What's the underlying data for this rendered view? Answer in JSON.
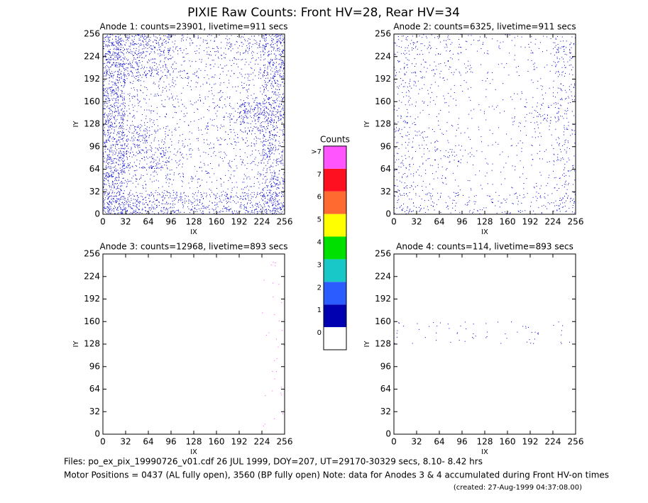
{
  "chart_data": [
    {
      "type": "heatmap-dots",
      "title": "Anode 1: counts=23901, livetime=911 secs",
      "xlabel": "IX",
      "ylabel": "IY",
      "xlim": [
        0,
        256
      ],
      "ylim": [
        0,
        256
      ],
      "xticks": [
        0,
        32,
        64,
        96,
        128,
        160,
        192,
        224,
        256
      ],
      "yticks": [
        0,
        32,
        64,
        96,
        128,
        160,
        192,
        224,
        256
      ],
      "color": "#0000cc",
      "density": [
        [
          40,
          30,
          25,
          10,
          10,
          10,
          15,
          35
        ],
        [
          40,
          25,
          20,
          10,
          8,
          8,
          10,
          30
        ],
        [
          35,
          10,
          8,
          6,
          6,
          6,
          8,
          25
        ],
        [
          35,
          8,
          6,
          6,
          6,
          10,
          35,
          35
        ],
        [
          35,
          25,
          10,
          6,
          6,
          10,
          15,
          25
        ],
        [
          35,
          20,
          25,
          8,
          6,
          6,
          8,
          25
        ],
        [
          35,
          10,
          8,
          6,
          6,
          6,
          8,
          25
        ],
        [
          45,
          30,
          25,
          20,
          20,
          20,
          25,
          40
        ]
      ]
    },
    {
      "type": "heatmap-dots",
      "title": "Anode 2: counts=6325, livetime=911 secs",
      "xlabel": "IX",
      "ylabel": "IY",
      "xlim": [
        0,
        256
      ],
      "ylim": [
        0,
        256
      ],
      "xticks": [
        0,
        32,
        64,
        96,
        128,
        160,
        192,
        224,
        256
      ],
      "yticks": [
        0,
        32,
        64,
        96,
        128,
        160,
        192,
        224,
        256
      ],
      "color": "#0000cc",
      "density": [
        [
          10,
          8,
          7,
          4,
          3,
          3,
          4,
          12
        ],
        [
          9,
          6,
          6,
          3,
          2,
          2,
          3,
          10
        ],
        [
          8,
          4,
          3,
          2,
          2,
          2,
          3,
          9
        ],
        [
          8,
          3,
          2,
          2,
          2,
          4,
          10,
          9
        ],
        [
          8,
          6,
          4,
          2,
          2,
          3,
          4,
          8
        ],
        [
          8,
          6,
          7,
          3,
          2,
          2,
          3,
          8
        ],
        [
          9,
          4,
          3,
          2,
          2,
          2,
          3,
          8
        ],
        [
          12,
          8,
          7,
          6,
          6,
          6,
          7,
          12
        ]
      ]
    },
    {
      "type": "heatmap-dots",
      "title": "Anode 3: counts=12968, livetime=893 secs",
      "xlabel": "IX",
      "ylabel": "IY",
      "xlim": [
        0,
        256
      ],
      "ylim": [
        0,
        256
      ],
      "xticks": [
        0,
        32,
        64,
        96,
        128,
        160,
        192,
        224,
        256
      ],
      "yticks": [
        0,
        32,
        64,
        96,
        128,
        160,
        192,
        224,
        256
      ],
      "color": "#ff44ff",
      "density": [
        [
          0,
          0,
          0,
          0,
          0,
          0,
          0,
          1
        ],
        [
          0,
          0,
          0,
          0,
          0,
          0,
          0,
          1
        ],
        [
          0,
          0,
          0,
          0,
          0,
          0,
          0,
          1
        ],
        [
          0,
          0,
          0,
          0,
          0,
          0,
          0,
          1
        ],
        [
          0,
          0,
          0,
          0,
          0,
          0,
          0,
          1
        ],
        [
          0,
          0,
          0,
          0,
          0,
          0,
          0,
          1
        ],
        [
          0,
          0,
          0,
          0,
          0,
          0,
          0,
          1
        ],
        [
          0,
          0,
          0,
          0,
          0,
          0,
          0,
          1
        ]
      ]
    },
    {
      "type": "heatmap-dots",
      "title": "Anode 4: counts=114, livetime=893 secs",
      "xlabel": "IX",
      "ylabel": "IY",
      "xlim": [
        0,
        256
      ],
      "ylim": [
        0,
        256
      ],
      "xticks": [
        0,
        32,
        64,
        96,
        128,
        160,
        192,
        224,
        256
      ],
      "yticks": [
        0,
        32,
        64,
        96,
        128,
        160,
        192,
        224,
        256
      ],
      "color": "#0000cc",
      "density": [
        [
          0,
          0,
          0,
          0,
          0,
          0,
          0,
          0
        ],
        [
          0,
          0,
          0,
          0,
          0,
          0,
          0,
          0
        ],
        [
          0,
          0,
          0,
          0,
          0,
          0,
          0,
          0
        ],
        [
          2,
          2,
          2,
          2,
          2,
          2,
          2,
          2
        ],
        [
          0,
          0,
          0,
          0,
          0,
          0,
          0,
          0
        ],
        [
          0,
          0,
          0,
          0,
          0,
          0,
          0,
          0
        ],
        [
          0,
          0,
          0,
          0,
          0,
          0,
          0,
          0
        ],
        [
          0,
          0,
          0,
          0,
          0,
          0,
          0,
          0
        ]
      ]
    },
    {
      "type": "colorbar",
      "title": "Counts",
      "categories": [
        "0",
        "1",
        "2",
        "3",
        "4",
        "5",
        "6",
        "7",
        ">7"
      ],
      "colors": [
        "#ffffff",
        "#0000b0",
        "#2a5cff",
        "#18c8c8",
        "#00e000",
        "#ffff00",
        "#ff6a30",
        "#ff1020",
        "#ff55ff"
      ]
    }
  ],
  "header": {
    "title": "PIXIE Raw Counts:  Front HV=28, Rear HV=34"
  },
  "footer": {
    "line1": "Files: po_ex_pix_19990726_v01.cdf    26 JUL 1999, DOY=207, UT=29170-30329 secs,  8.10- 8.42 hrs",
    "line2": "Motor Positions = 0437 (AL fully open), 3560 (BP fully open)    Note: data for Anodes 3 & 4 accumulated during Front HV-on times",
    "created": "(created: 27-Aug-1999 04:37:08.00)"
  }
}
